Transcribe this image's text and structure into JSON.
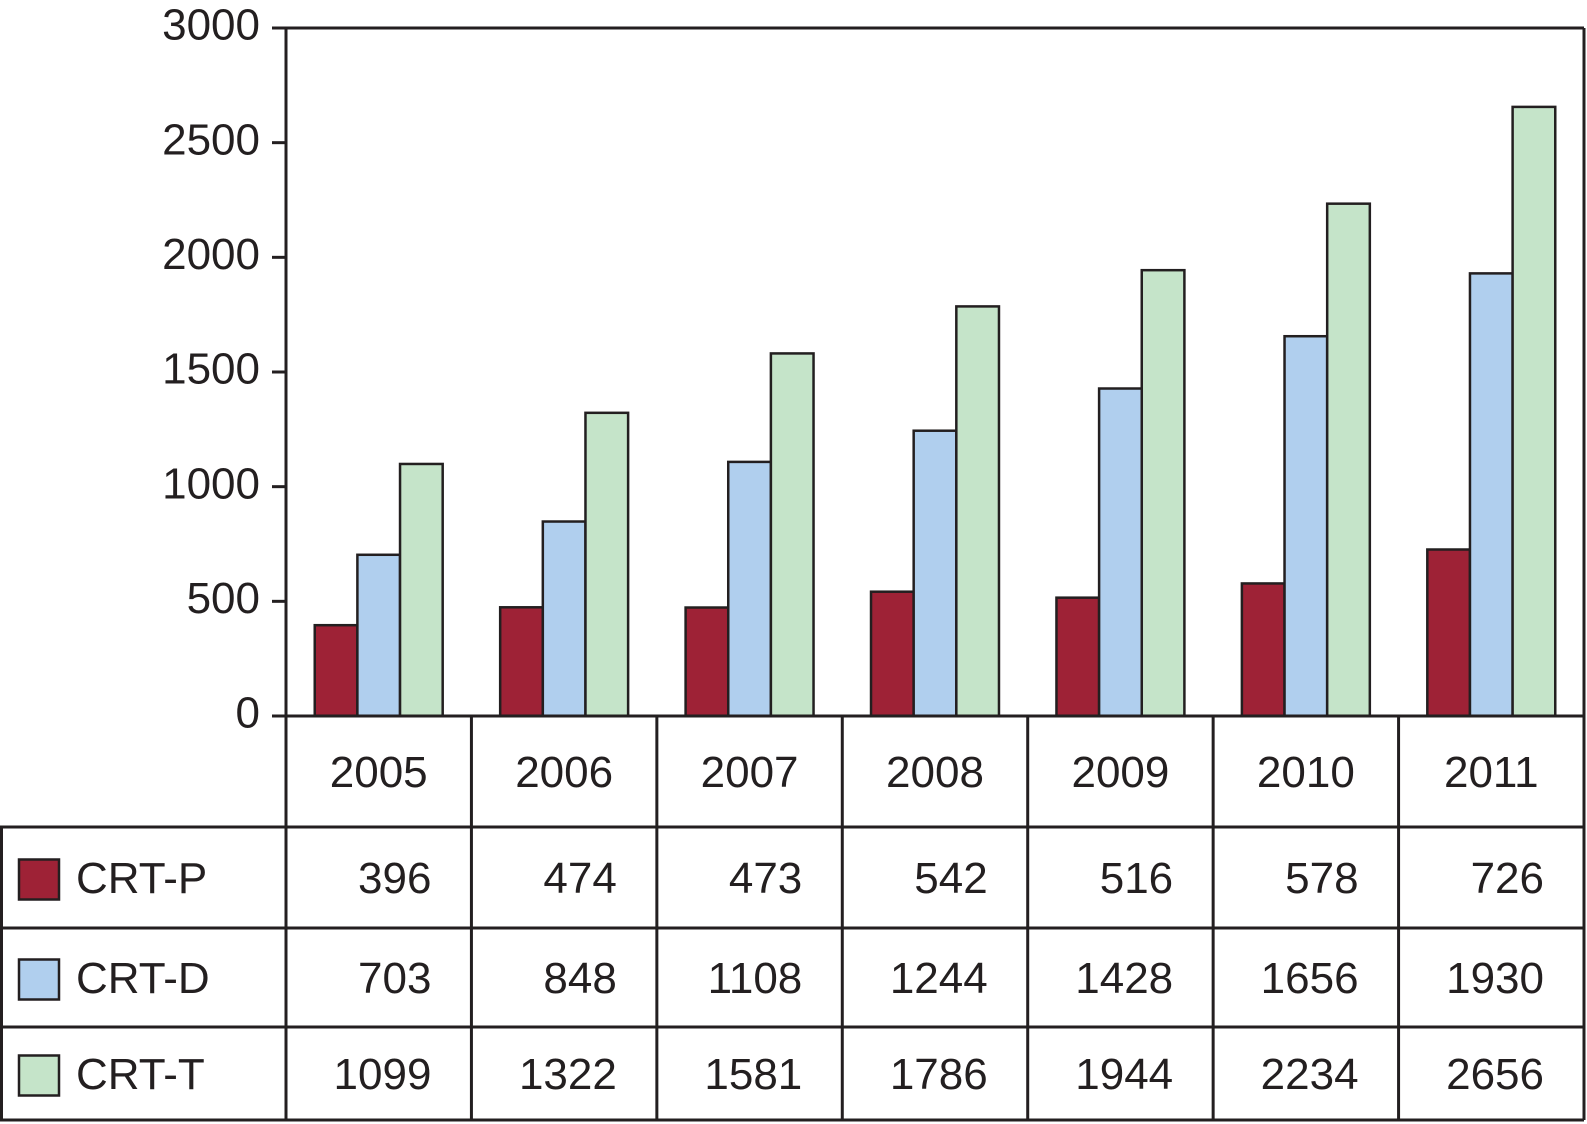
{
  "chart_data": {
    "type": "bar",
    "categories": [
      "2005",
      "2006",
      "2007",
      "2008",
      "2009",
      "2010",
      "2011"
    ],
    "series": [
      {
        "name": "CRT-P",
        "color": "#9e2236",
        "values": [
          396,
          474,
          473,
          542,
          516,
          578,
          726
        ]
      },
      {
        "name": "CRT-D",
        "color": "#b0cfee",
        "values": [
          703,
          848,
          1108,
          1244,
          1428,
          1656,
          1930
        ]
      },
      {
        "name": "CRT-T",
        "color": "#c5e4c9",
        "values": [
          1099,
          1322,
          1581,
          1786,
          1944,
          2234,
          2656
        ]
      }
    ],
    "ylim": [
      0,
      3000
    ],
    "yticks": [
      0,
      500,
      1000,
      1500,
      2000,
      2500,
      3000
    ],
    "grid": false
  }
}
